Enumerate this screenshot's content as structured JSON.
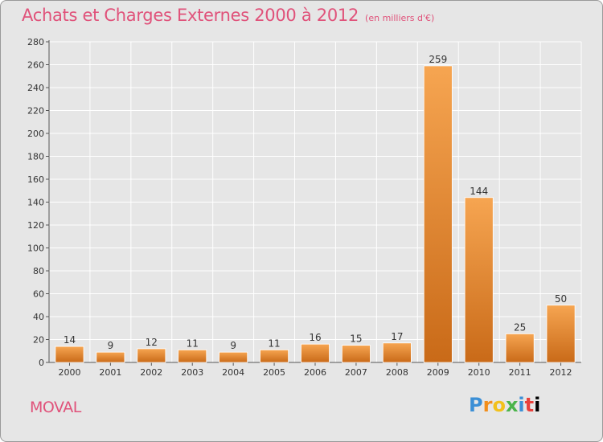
{
  "header": {
    "title": "Achats et Charges Externes 2000 à 2012",
    "subtitle": "(en milliers d'€)"
  },
  "footer": {
    "commune": "MOVAL",
    "brand": "Proxiti"
  },
  "colors": {
    "title": "#e0527a",
    "bar_light": "#f6a551",
    "bar_dark": "#c96a18",
    "background": "#e6e6e6"
  },
  "chart_data": {
    "type": "bar",
    "title": "Achats et Charges Externes 2000 à 2012",
    "subtitle": "(en milliers d'€)",
    "xlabel": "",
    "ylabel": "",
    "categories": [
      "2000",
      "2001",
      "2002",
      "2003",
      "2004",
      "2005",
      "2006",
      "2007",
      "2008",
      "2009",
      "2010",
      "2011",
      "2012"
    ],
    "values": [
      14,
      9,
      12,
      11,
      9,
      11,
      16,
      15,
      17,
      259,
      144,
      25,
      50
    ],
    "ylim": [
      0,
      280
    ],
    "yticks": [
      0,
      20,
      40,
      60,
      80,
      100,
      120,
      140,
      160,
      180,
      200,
      220,
      240,
      260,
      280
    ],
    "grid": true,
    "legend": "none",
    "data_labels": true
  }
}
